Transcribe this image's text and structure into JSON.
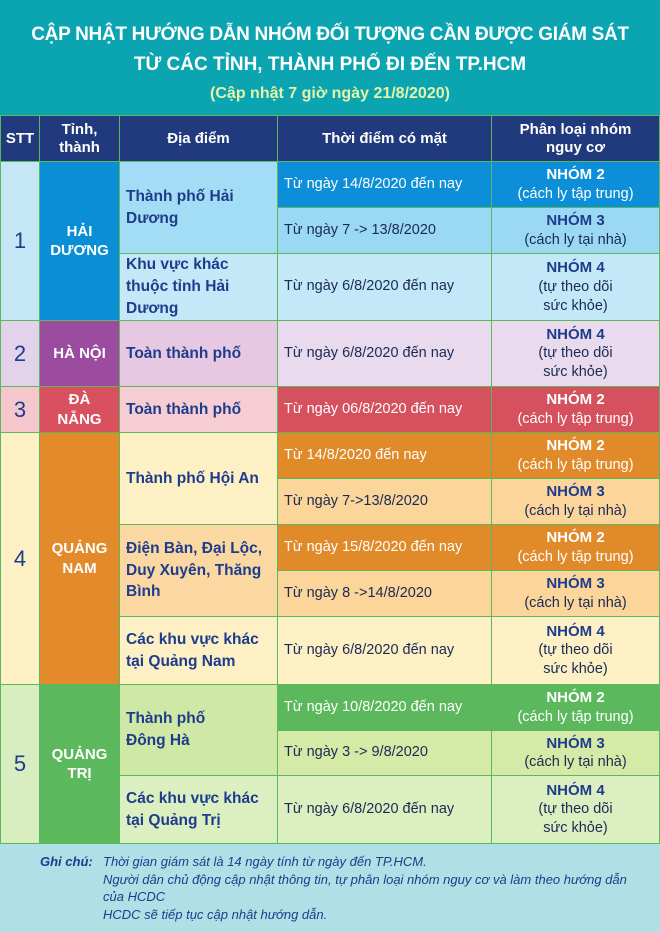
{
  "title": {
    "line1": "CẬP NHẬT HƯỚNG DẪN NHÓM ĐỐI TƯỢNG CẦN ĐƯỢC GIÁM SÁT",
    "line2": "TỪ CÁC TỈNH, THÀNH PHỐ ĐI ĐẾN TP.HCM",
    "subtitle": "(Cập nhật 7 giờ ngày 21/8/2020)"
  },
  "colors": {
    "title_bg": "#0aa5b0",
    "header_bg": "#203a7d",
    "grid": "#5cb85c",
    "hai_duong": "#0a8fd6",
    "ha_noi": "#9b4c9e",
    "da_nang": "#d9515e",
    "quang_nam": "#e38a2a",
    "quang_tri": "#5cb85c"
  },
  "headers": {
    "stt": "STT",
    "province": "Tỉnh, thành",
    "location": "Địa điểm",
    "time": "Thời điểm có mặt",
    "group": "Phân loại nhóm nguy cơ"
  },
  "groups": {
    "g2": "NHÓM 2",
    "g2d": "(cách ly tập trung)",
    "g3": "NHÓM 3",
    "g3d": "(cách ly tại nhà)",
    "g4": "NHÓM 4",
    "g4d1": "(tự theo dõi",
    "g4d2": "sức khỏe)"
  },
  "rows": [
    {
      "stt": "1",
      "province": "HẢI DƯƠNG",
      "locations": [
        "Thành phố Hải Dương",
        "Khu vực khác thuộc tỉnh Hải Dương"
      ],
      "times": [
        "Từ ngày 14/8/2020 đến nay",
        "Từ ngày 7 -> 13/8/2020",
        "Từ ngày 6/8/2020 đến nay"
      ]
    },
    {
      "stt": "2",
      "province": "HÀ NỘI",
      "locations": [
        "Toàn thành phố"
      ],
      "times": [
        "Từ ngày 6/8/2020 đến nay"
      ]
    },
    {
      "stt": "3",
      "province": "ĐÀ NẴNG",
      "locations": [
        "Toàn thành phố"
      ],
      "times": [
        "Từ ngày 06/8/2020 đến nay"
      ]
    },
    {
      "stt": "4",
      "province": "QUẢNG NAM",
      "locations": [
        "Thành phố Hội An",
        "Điện Bàn, Đại Lộc, Duy Xuyên, Thăng Bình",
        "Các khu vực khác tại Quảng Nam"
      ],
      "times": [
        "Từ 14/8/2020 đến nay",
        "Từ ngày 7->13/8/2020",
        "Từ ngày 15/8/2020 đến nay",
        "Từ ngày 8 ->14/8/2020",
        "Từ ngày 6/8/2020 đến nay"
      ]
    },
    {
      "stt": "5",
      "province": "QUẢNG TRỊ",
      "locations": [
        "Thành phố Đông Hà",
        "Các khu vực khác tại Quảng Trị"
      ],
      "times": [
        "Từ ngày 10/8/2020 đến nay",
        "Từ ngày 3 -> 9/8/2020",
        "Từ ngày 6/8/2020 đến nay"
      ]
    }
  ],
  "notes": {
    "label": "Ghi chú:",
    "lines": [
      "Thời gian giám sát là 14 ngày tính từ ngày đến TP.HCM.",
      "Người dân chủ động cập nhật thông tin, tự phân loại nhóm nguy cơ và làm theo hướng dẫn của HCDC",
      "HCDC sẽ tiếp tục cập nhật hướng dẫn."
    ]
  }
}
